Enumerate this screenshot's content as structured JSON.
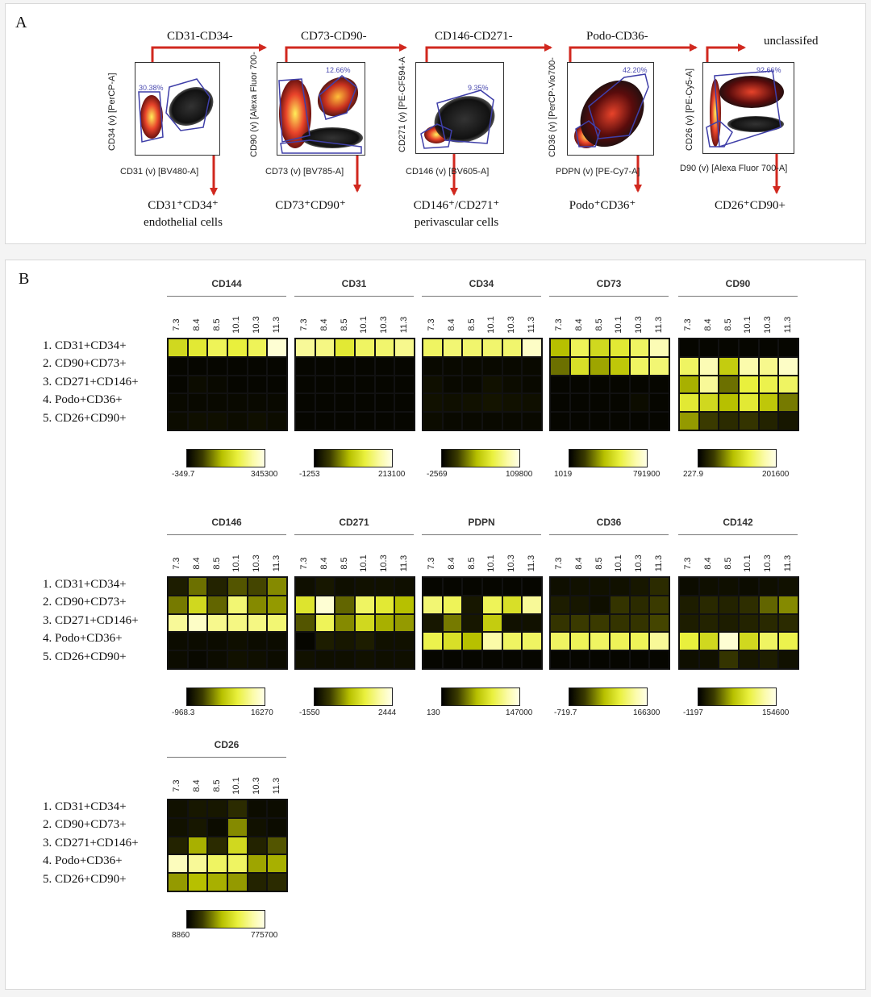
{
  "panel_a": {
    "label": "A",
    "gates": [
      "CD31-CD34-",
      "CD73-CD90-",
      "CD146-CD271-",
      "Podo-CD36-",
      "unclassifed"
    ],
    "plots": [
      {
        "y_axis": "CD34 (v) [PerCP-A]",
        "x_axis": "CD31 (v) [BV480-A]",
        "gate_pct": "30.38%",
        "population_line1": "CD31⁺CD34⁺",
        "population_line2": "endothelial cells"
      },
      {
        "y_axis": "CD90 (v) [Alexa Fluor 700-",
        "x_axis": "CD73 (v) [BV785-A]",
        "gate_pct": "12.66%",
        "population_line1": "CD73⁺CD90⁺",
        "population_line2": ""
      },
      {
        "y_axis": "CD271 (v) [PE-CF594-A",
        "x_axis": "CD146 (v) [BV605-A]",
        "gate_pct": "9.35%",
        "population_line1": "CD146⁺/CD271⁺",
        "population_line2": "perivascular cells"
      },
      {
        "y_axis": "CD36 (v) [PerCP-Vio700-",
        "x_axis": "PDPN (v) [PE-Cy7-A]",
        "gate_pct": "42.20%",
        "population_line1": "Podo⁺CD36⁺",
        "population_line2": ""
      },
      {
        "y_axis": "CD26 (v) [PE-Cy5-A]",
        "x_axis": "D90 (v) [Alexa Fluor 700-A]",
        "gate_pct": "92.66%",
        "population_line1": "CD26⁺CD90+",
        "population_line2": ""
      }
    ]
  },
  "panel_b": {
    "label": "B",
    "timepoints": [
      "7.3",
      "8.4",
      "8.5",
      "10.1",
      "10.3",
      "11.3"
    ],
    "populations": [
      "1. CD31+CD34+",
      "2. CD90+CD73+",
      "3. CD271+CD146+",
      "4. Podo+CD36+",
      "5. CD26+CD90+"
    ],
    "heatmaps": [
      {
        "marker": "CD144",
        "scale_min": "-349.7",
        "scale_max": "345300",
        "values": [
          [
            0.55,
            0.62,
            0.7,
            0.65,
            0.7,
            0.95
          ],
          [
            0.02,
            0.02,
            0.02,
            0.02,
            0.02,
            0.02
          ],
          [
            0.02,
            0.04,
            0.03,
            0.02,
            0.02,
            0.02
          ],
          [
            0.03,
            0.03,
            0.03,
            0.03,
            0.03,
            0.03
          ],
          [
            0.04,
            0.05,
            0.05,
            0.04,
            0.05,
            0.04
          ]
        ]
      },
      {
        "marker": "CD31",
        "scale_min": "-1253",
        "scale_max": "213100",
        "values": [
          [
            0.82,
            0.78,
            0.62,
            0.72,
            0.74,
            0.8
          ],
          [
            0.02,
            0.02,
            0.02,
            0.02,
            0.02,
            0.02
          ],
          [
            0.02,
            0.02,
            0.02,
            0.02,
            0.02,
            0.02
          ],
          [
            0.02,
            0.02,
            0.02,
            0.02,
            0.02,
            0.02
          ],
          [
            0.02,
            0.02,
            0.02,
            0.02,
            0.02,
            0.02
          ]
        ]
      },
      {
        "marker": "CD34",
        "scale_min": "-2569",
        "scale_max": "109800",
        "values": [
          [
            0.72,
            0.75,
            0.74,
            0.74,
            0.74,
            0.92
          ],
          [
            0.03,
            0.03,
            0.03,
            0.03,
            0.03,
            0.03
          ],
          [
            0.05,
            0.03,
            0.03,
            0.06,
            0.04,
            0.03
          ],
          [
            0.06,
            0.05,
            0.06,
            0.07,
            0.06,
            0.05
          ],
          [
            0.04,
            0.03,
            0.03,
            0.03,
            0.03,
            0.03
          ]
        ]
      },
      {
        "marker": "CD73",
        "scale_min": "1019",
        "scale_max": "791900",
        "values": [
          [
            0.45,
            0.7,
            0.55,
            0.62,
            0.72,
            0.88
          ],
          [
            0.3,
            0.58,
            0.4,
            0.48,
            0.72,
            0.75
          ],
          [
            0.02,
            0.02,
            0.02,
            0.02,
            0.02,
            0.02
          ],
          [
            0.02,
            0.02,
            0.02,
            0.02,
            0.04,
            0.02
          ],
          [
            0.02,
            0.02,
            0.02,
            0.02,
            0.02,
            0.02
          ]
        ]
      },
      {
        "marker": "CD90",
        "scale_min": "227.9",
        "scale_max": "201600",
        "values": [
          [
            0.02,
            0.02,
            0.02,
            0.02,
            0.02,
            0.02
          ],
          [
            0.72,
            0.88,
            0.5,
            0.86,
            0.8,
            0.92
          ],
          [
            0.42,
            0.82,
            0.3,
            0.65,
            0.68,
            0.72
          ],
          [
            0.62,
            0.55,
            0.45,
            0.62,
            0.48,
            0.32
          ],
          [
            0.38,
            0.2,
            0.15,
            0.18,
            0.12,
            0.08
          ]
        ]
      },
      {
        "marker": "CD146",
        "scale_min": "-968.3",
        "scale_max": "16270",
        "values": [
          [
            0.1,
            0.3,
            0.12,
            0.25,
            0.22,
            0.35
          ],
          [
            0.32,
            0.55,
            0.28,
            0.75,
            0.35,
            0.38
          ],
          [
            0.82,
            0.92,
            0.8,
            0.78,
            0.78,
            0.75
          ],
          [
            0.04,
            0.04,
            0.04,
            0.05,
            0.04,
            0.04
          ],
          [
            0.04,
            0.03,
            0.04,
            0.06,
            0.05,
            0.04
          ]
        ]
      },
      {
        "marker": "CD271",
        "scale_min": "-1550",
        "scale_max": "2444",
        "values": [
          [
            0.05,
            0.08,
            0.05,
            0.06,
            0.06,
            0.05
          ],
          [
            0.6,
            0.95,
            0.28,
            0.72,
            0.62,
            0.45
          ],
          [
            0.25,
            0.7,
            0.35,
            0.55,
            0.42,
            0.38
          ],
          [
            0.02,
            0.1,
            0.08,
            0.1,
            0.06,
            0.06
          ],
          [
            0.06,
            0.05,
            0.05,
            0.06,
            0.05,
            0.05
          ]
        ]
      },
      {
        "marker": "PDPN",
        "scale_min": "130",
        "scale_max": "147000",
        "values": [
          [
            0.02,
            0.02,
            0.02,
            0.02,
            0.02,
            0.02
          ],
          [
            0.75,
            0.7,
            0.08,
            0.7,
            0.58,
            0.82
          ],
          [
            0.08,
            0.32,
            0.08,
            0.5,
            0.06,
            0.06
          ],
          [
            0.68,
            0.58,
            0.45,
            0.85,
            0.72,
            0.72
          ],
          [
            0.02,
            0.02,
            0.02,
            0.02,
            0.02,
            0.02
          ]
        ]
      },
      {
        "marker": "CD36",
        "scale_min": "-719.7",
        "scale_max": "166300",
        "values": [
          [
            0.05,
            0.06,
            0.06,
            0.06,
            0.08,
            0.15
          ],
          [
            0.1,
            0.08,
            0.05,
            0.18,
            0.15,
            0.2
          ],
          [
            0.18,
            0.2,
            0.2,
            0.18,
            0.18,
            0.22
          ],
          [
            0.72,
            0.7,
            0.72,
            0.7,
            0.7,
            0.82
          ],
          [
            0.02,
            0.02,
            0.02,
            0.02,
            0.02,
            0.02
          ]
        ]
      },
      {
        "marker": "CD142",
        "scale_min": "-1197",
        "scale_max": "154600",
        "values": [
          [
            0.04,
            0.05,
            0.05,
            0.04,
            0.05,
            0.06
          ],
          [
            0.1,
            0.14,
            0.12,
            0.16,
            0.28,
            0.35
          ],
          [
            0.1,
            0.12,
            0.1,
            0.12,
            0.14,
            0.15
          ],
          [
            0.65,
            0.55,
            0.95,
            0.55,
            0.72,
            0.68
          ],
          [
            0.05,
            0.06,
            0.18,
            0.08,
            0.1,
            0.06
          ]
        ]
      },
      {
        "marker": "CD26",
        "scale_min": "8860",
        "scale_max": "775700",
        "values": [
          [
            0.06,
            0.08,
            0.08,
            0.15,
            0.04,
            0.04
          ],
          [
            0.06,
            0.08,
            0.04,
            0.35,
            0.06,
            0.04
          ],
          [
            0.12,
            0.42,
            0.15,
            0.55,
            0.12,
            0.25
          ],
          [
            0.9,
            0.82,
            0.72,
            0.72,
            0.4,
            0.42
          ],
          [
            0.38,
            0.45,
            0.42,
            0.38,
            0.12,
            0.15
          ]
        ]
      }
    ]
  }
}
